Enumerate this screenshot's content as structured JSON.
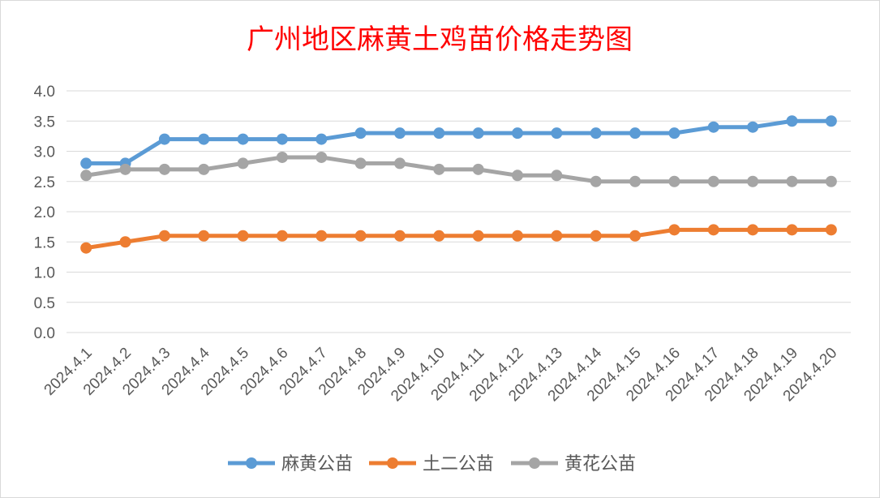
{
  "chart_data": {
    "type": "line",
    "title": "广州地区麻黄土鸡苗价格走势图",
    "categories": [
      "2024.4.1",
      "2024.4.2",
      "2024.4.3",
      "2024.4.4",
      "2024.4.5",
      "2024.4.6",
      "2024.4.7",
      "2024.4.8",
      "2024.4.9",
      "2024.4.10",
      "2024.4.11",
      "2024.4.12",
      "2024.4.13",
      "2024.4.14",
      "2024.4.15",
      "2024.4.16",
      "2024.4.17",
      "2024.4.18",
      "2024.4.19",
      "2024.4.20"
    ],
    "ylim": [
      0,
      4.0
    ],
    "yticks": [
      "0.0",
      "0.5",
      "1.0",
      "1.5",
      "2.0",
      "2.5",
      "3.0",
      "3.5",
      "4.0"
    ],
    "grid": true,
    "legend_position": "bottom",
    "series": [
      {
        "name": "麻黄公苗",
        "color": "#5b9bd5",
        "values": [
          2.8,
          2.8,
          3.2,
          3.2,
          3.2,
          3.2,
          3.2,
          3.3,
          3.3,
          3.3,
          3.3,
          3.3,
          3.3,
          3.3,
          3.3,
          3.3,
          3.4,
          3.4,
          3.5,
          3.5
        ]
      },
      {
        "name": "土二公苗",
        "color": "#ed7d31",
        "values": [
          1.4,
          1.5,
          1.6,
          1.6,
          1.6,
          1.6,
          1.6,
          1.6,
          1.6,
          1.6,
          1.6,
          1.6,
          1.6,
          1.6,
          1.6,
          1.7,
          1.7,
          1.7,
          1.7,
          1.7
        ]
      },
      {
        "name": "黄花公苗",
        "color": "#a5a5a5",
        "values": [
          2.6,
          2.7,
          2.7,
          2.7,
          2.8,
          2.9,
          2.9,
          2.8,
          2.8,
          2.7,
          2.7,
          2.6,
          2.6,
          2.5,
          2.5,
          2.5,
          2.5,
          2.5,
          2.5,
          2.5
        ]
      }
    ]
  }
}
